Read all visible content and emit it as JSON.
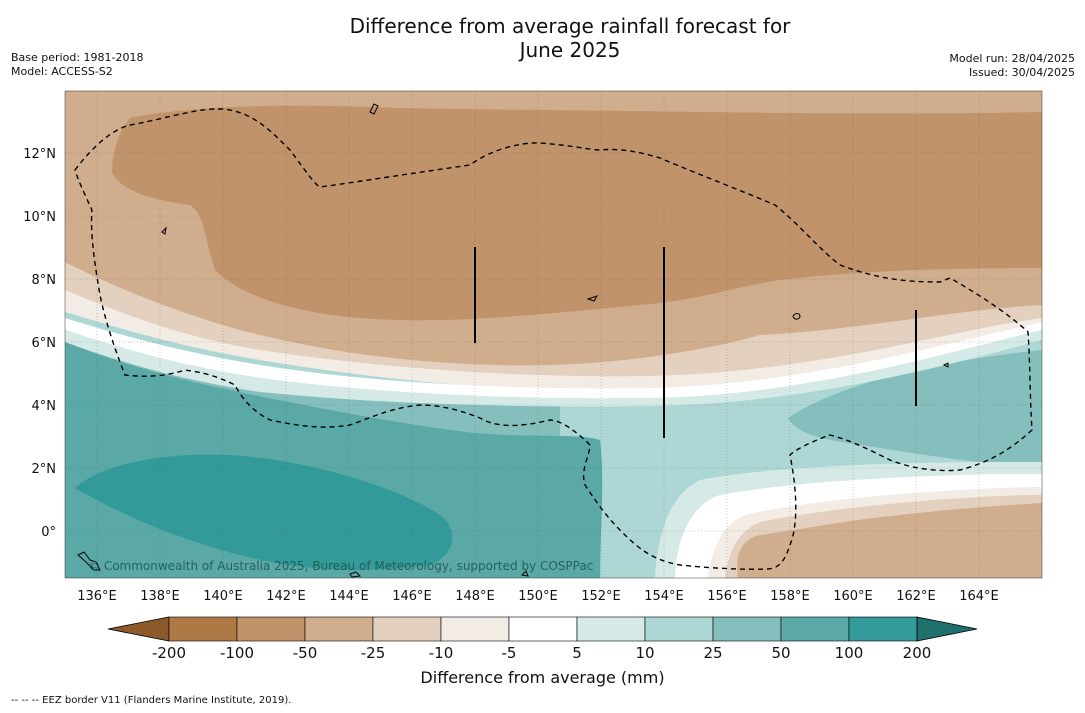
{
  "title_line1": "Difference from average rainfall forecast for",
  "title_line2": "June 2025",
  "base_period": "Base period: 1981-2018",
  "model": "Model: ACCESS-S2",
  "model_run": "Model run: 28/04/2025",
  "issued": "Issued: 30/04/2025",
  "copyright": "© Commonwealth of Australia 2025, Bureau of Meteorology, supported by COSPPac",
  "lon_labels": [
    "136°E",
    "138°E",
    "140°E",
    "142°E",
    "144°E",
    "146°E",
    "148°E",
    "150°E",
    "152°E",
    "154°E",
    "156°E",
    "158°E",
    "160°E",
    "162°E",
    "164°E"
  ],
  "lat_labels": [
    "12°N",
    "10°N",
    "8°N",
    "6°N",
    "4°N",
    "2°N",
    "0°"
  ],
  "colorbar": {
    "title": "Difference from average (mm)",
    "ticks": [
      "-200",
      "-100",
      "-50",
      "-25",
      "-10",
      "-5",
      "5",
      "10",
      "25",
      "50",
      "100",
      "200"
    ],
    "colors": [
      "#8c5a2a",
      "#ad7a45",
      "#c0936a",
      "#d0ad8d",
      "#e3d0be",
      "#f2ece4",
      "#ffffff",
      "#d5eae7",
      "#add7d5",
      "#84bfbd",
      "#5aa9a7",
      "#329a98",
      "#1f6f6c"
    ]
  },
  "footnote": "--  --  -- EEZ border V11 (Flanders Marine Institute, 2019)."
}
